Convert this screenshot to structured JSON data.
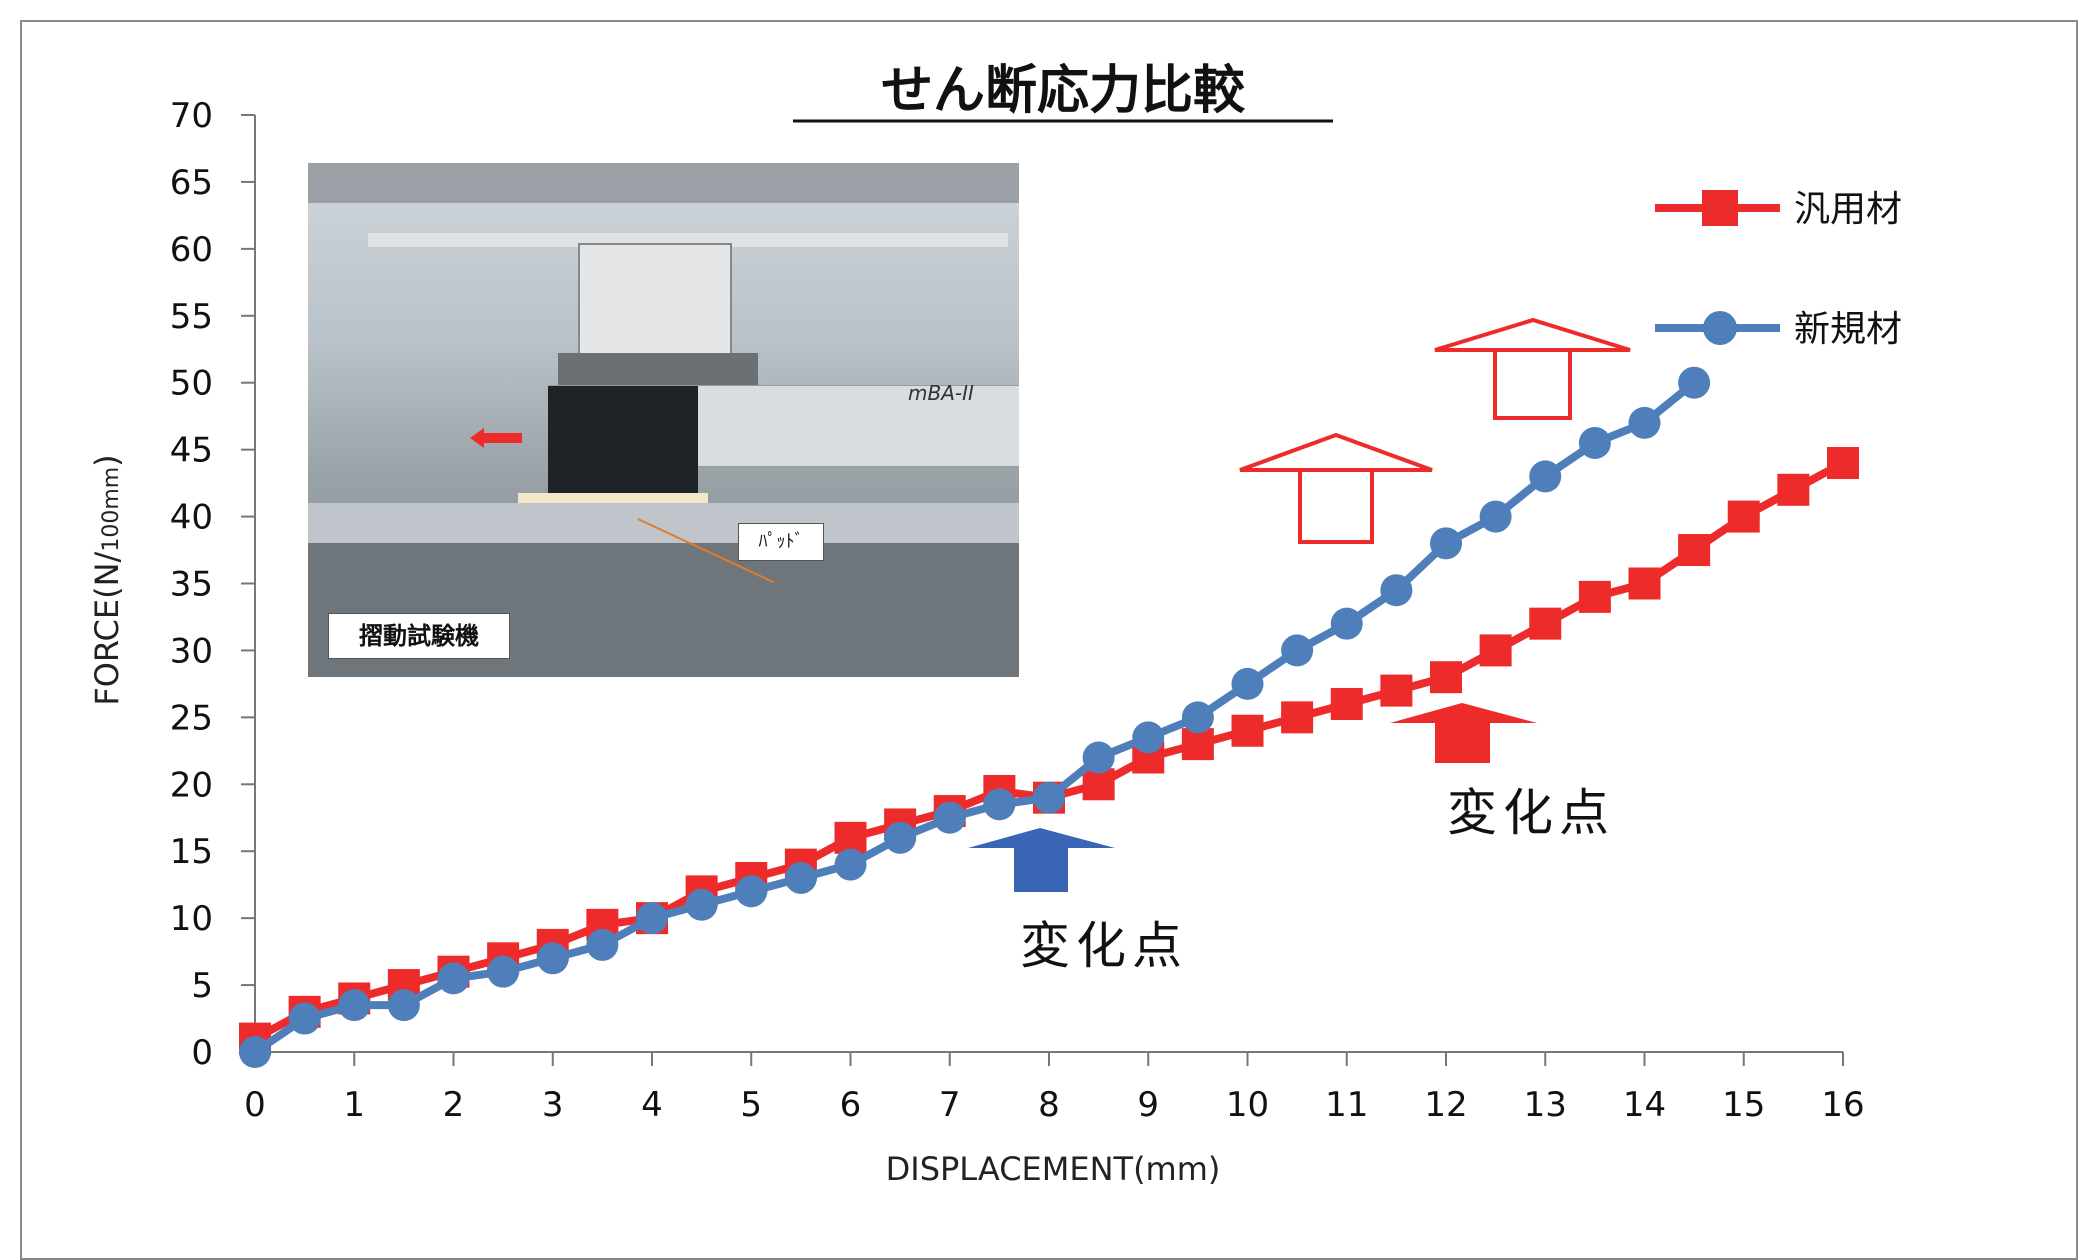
{
  "chart_data": {
    "type": "line",
    "title": "せん断応力比較",
    "xlabel": "DISPLACEMENT(mm)",
    "ylabel": "FORCE(N/100mm)",
    "ylabel_main": "FORCE(N/",
    "ylabel_sub": "100mm",
    "ylabel_close": ")",
    "xlim": [
      0,
      16
    ],
    "ylim": [
      0,
      70
    ],
    "x_ticks": [
      0,
      1,
      2,
      3,
      4,
      5,
      6,
      7,
      8,
      9,
      10,
      11,
      12,
      13,
      14,
      15,
      16
    ],
    "y_ticks": [
      0,
      5,
      10,
      15,
      20,
      25,
      30,
      35,
      40,
      45,
      50,
      55,
      60,
      65,
      70
    ],
    "legend_position": "top-right",
    "series": [
      {
        "name": "汎用材",
        "color": "#ee2b2b",
        "marker": "square",
        "x": [
          0,
          0.5,
          1,
          1.5,
          2,
          2.5,
          3,
          3.5,
          4,
          4.5,
          5,
          5.5,
          6,
          6.5,
          7,
          7.5,
          8,
          8.5,
          9,
          9.5,
          10,
          10.5,
          11,
          11.5,
          12,
          12.5,
          13,
          13.5,
          14,
          14.5,
          15,
          15.5,
          16
        ],
        "y": [
          1,
          3,
          4,
          5,
          6,
          7,
          8,
          9.5,
          10,
          12,
          13,
          14,
          16,
          17,
          18,
          19.5,
          19,
          20,
          22,
          23,
          24,
          25,
          26,
          27,
          28,
          30,
          32,
          34,
          35,
          37.5,
          40,
          42,
          44
        ]
      },
      {
        "name": "新規材",
        "color": "#4e7fba",
        "marker": "circle",
        "x": [
          0,
          0.5,
          1,
          1.5,
          2,
          2.5,
          3,
          3.5,
          4,
          4.5,
          5,
          5.5,
          6,
          6.5,
          7,
          7.5,
          8,
          8.5,
          9,
          9.5,
          10,
          10.5,
          11,
          11.5,
          12,
          12.5,
          13,
          13.5,
          14,
          14.5
        ],
        "y": [
          0,
          2.5,
          3.5,
          3.5,
          5.5,
          6,
          7,
          8,
          10,
          11,
          12,
          13,
          14,
          16,
          17.5,
          18.5,
          19,
          22,
          23.5,
          25,
          27.5,
          30,
          32,
          34.5,
          38,
          40,
          43,
          45.5,
          47,
          50
        ]
      }
    ],
    "annotations": [
      {
        "text": "変化点",
        "arrow_color": "#3a64b4",
        "arrow_style": "solid",
        "at_x": 7.8
      },
      {
        "text": "変化点",
        "arrow_color": "#ee2b2b",
        "arrow_style": "solid",
        "at_x": 12.1
      },
      {
        "arrow_color": "#ee2b2b",
        "arrow_style": "outline"
      },
      {
        "arrow_color": "#ee2b2b",
        "arrow_style": "outline"
      }
    ]
  },
  "photo": {
    "caption": "摺動試験機",
    "pad_label": "ﾊﾟｯﾄﾞ",
    "machine_label": "mBA-II"
  }
}
